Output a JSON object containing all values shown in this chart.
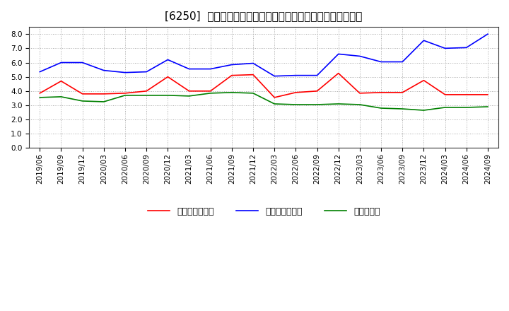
{
  "title": "[6250]  売上債権回転率、買入債務回転率、在庫回転率の推移",
  "x_labels": [
    "2019/06",
    "2019/09",
    "2019/12",
    "2020/03",
    "2020/06",
    "2020/09",
    "2020/12",
    "2021/03",
    "2021/06",
    "2021/09",
    "2021/12",
    "2022/03",
    "2022/06",
    "2022/09",
    "2022/12",
    "2023/03",
    "2023/06",
    "2023/09",
    "2023/12",
    "2024/03",
    "2024/06",
    "2024/09"
  ],
  "uriageSaiken": [
    3.85,
    4.7,
    3.8,
    3.8,
    3.85,
    4.0,
    5.0,
    4.0,
    4.0,
    5.1,
    5.15,
    3.55,
    3.9,
    4.0,
    5.25,
    3.85,
    3.9,
    3.9,
    4.75,
    3.75,
    3.75,
    3.75
  ],
  "kainyuSaimu": [
    5.35,
    6.0,
    6.0,
    5.45,
    5.3,
    5.35,
    6.2,
    5.55,
    5.55,
    5.85,
    5.95,
    5.05,
    5.1,
    5.1,
    6.6,
    6.45,
    6.05,
    6.05,
    7.55,
    7.0,
    7.05,
    8.0
  ],
  "zaiko": [
    3.55,
    3.6,
    3.3,
    3.25,
    3.7,
    3.7,
    3.7,
    3.65,
    3.85,
    3.9,
    3.85,
    3.1,
    3.05,
    3.05,
    3.1,
    3.05,
    2.8,
    2.75,
    2.65,
    2.85,
    2.85,
    2.9
  ],
  "color_red": "#ff0000",
  "color_blue": "#0000ff",
  "color_green": "#008000",
  "ylim": [
    0.0,
    8.5
  ],
  "yticks": [
    0.0,
    1.0,
    2.0,
    3.0,
    4.0,
    5.0,
    6.0,
    7.0,
    8.0
  ],
  "legend_label_red": "売上債権回転率",
  "legend_label_blue": "買入債務回転率",
  "legend_label_green": "在庫回転率",
  "bg_color": "#ffffff",
  "plot_bg_color": "#ffffff",
  "grid_color": "#aaaaaa",
  "title_fontsize": 11,
  "tick_fontsize": 7.5,
  "legend_fontsize": 9
}
